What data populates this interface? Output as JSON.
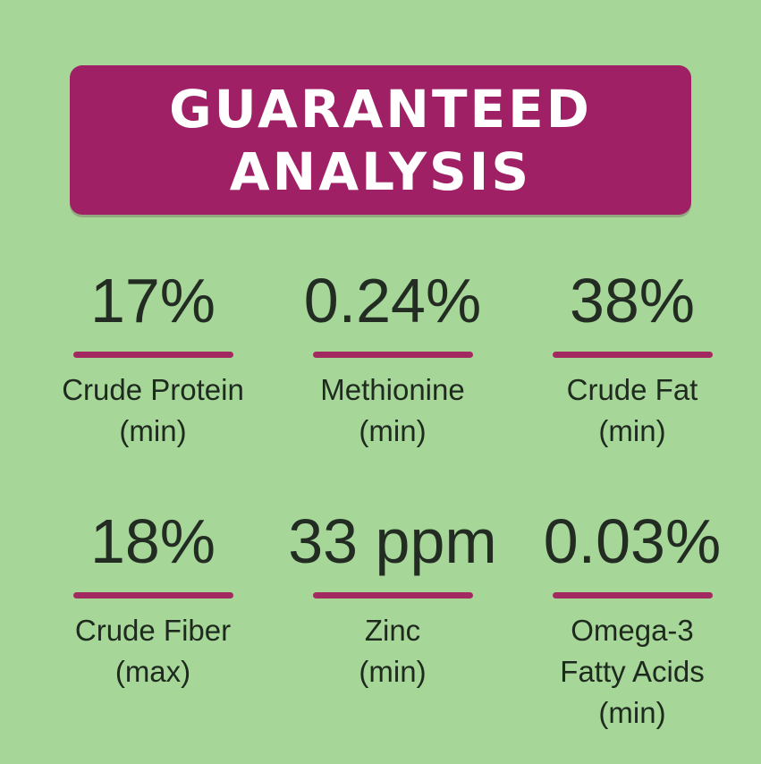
{
  "header": {
    "title": "GUARANTEED\nANALYSIS"
  },
  "stats": [
    {
      "value": "17%",
      "name": "Crude Protein",
      "qualifier": "(min)"
    },
    {
      "value": "0.24%",
      "name": "Methionine",
      "qualifier": "(min)"
    },
    {
      "value": "38%",
      "name": "Crude Fat",
      "qualifier": "(min)"
    },
    {
      "value": "18%",
      "name": "Crude Fiber",
      "qualifier": "(max)"
    },
    {
      "value": "33 ppm",
      "name": "Zinc",
      "qualifier": "(min)"
    },
    {
      "value": "0.03%",
      "name": "Omega-3\nFatty Acids",
      "qualifier": "(min)"
    }
  ],
  "colors": {
    "background": "#a6d698",
    "header_bg": "#a02066",
    "header_text": "#ffffff",
    "divider": "#a32a60",
    "text": "#1e2a1e",
    "value_text": "#232c23"
  }
}
